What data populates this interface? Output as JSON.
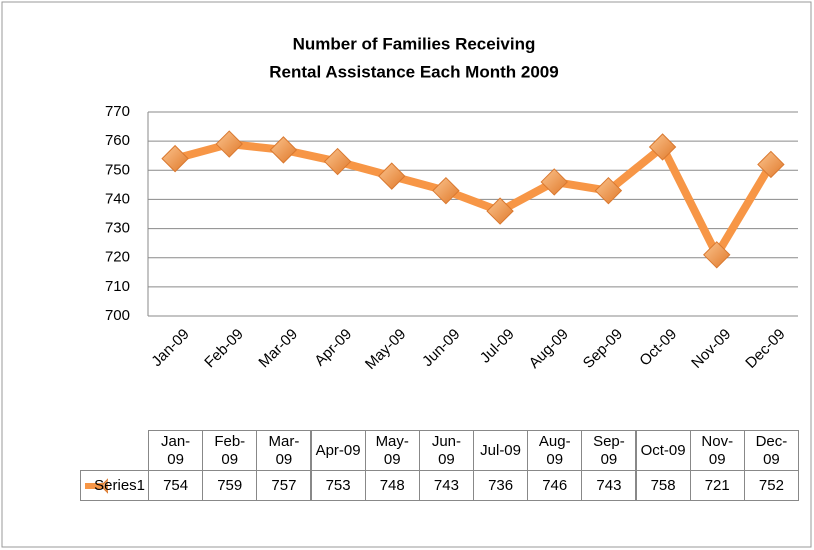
{
  "chart_data": {
    "type": "line",
    "title": "Number of Families Receiving",
    "subtitle": "Rental Assistance Each Month 2009",
    "categories": [
      "Jan-09",
      "Feb-09",
      "Mar-09",
      "Apr-09",
      "May-09",
      "Jun-09",
      "Jul-09",
      "Aug-09",
      "Sep-09",
      "Oct-09",
      "Nov-09",
      "Dec-09"
    ],
    "series": [
      {
        "name": "Series1",
        "color": "#f79646",
        "values": [
          754,
          759,
          757,
          753,
          748,
          743,
          736,
          746,
          743,
          758,
          721,
          752
        ]
      }
    ],
    "ylim": [
      700,
      770
    ],
    "yticks": [
      700,
      710,
      720,
      730,
      740,
      750,
      760,
      770
    ],
    "grid": true,
    "data_table": true
  }
}
